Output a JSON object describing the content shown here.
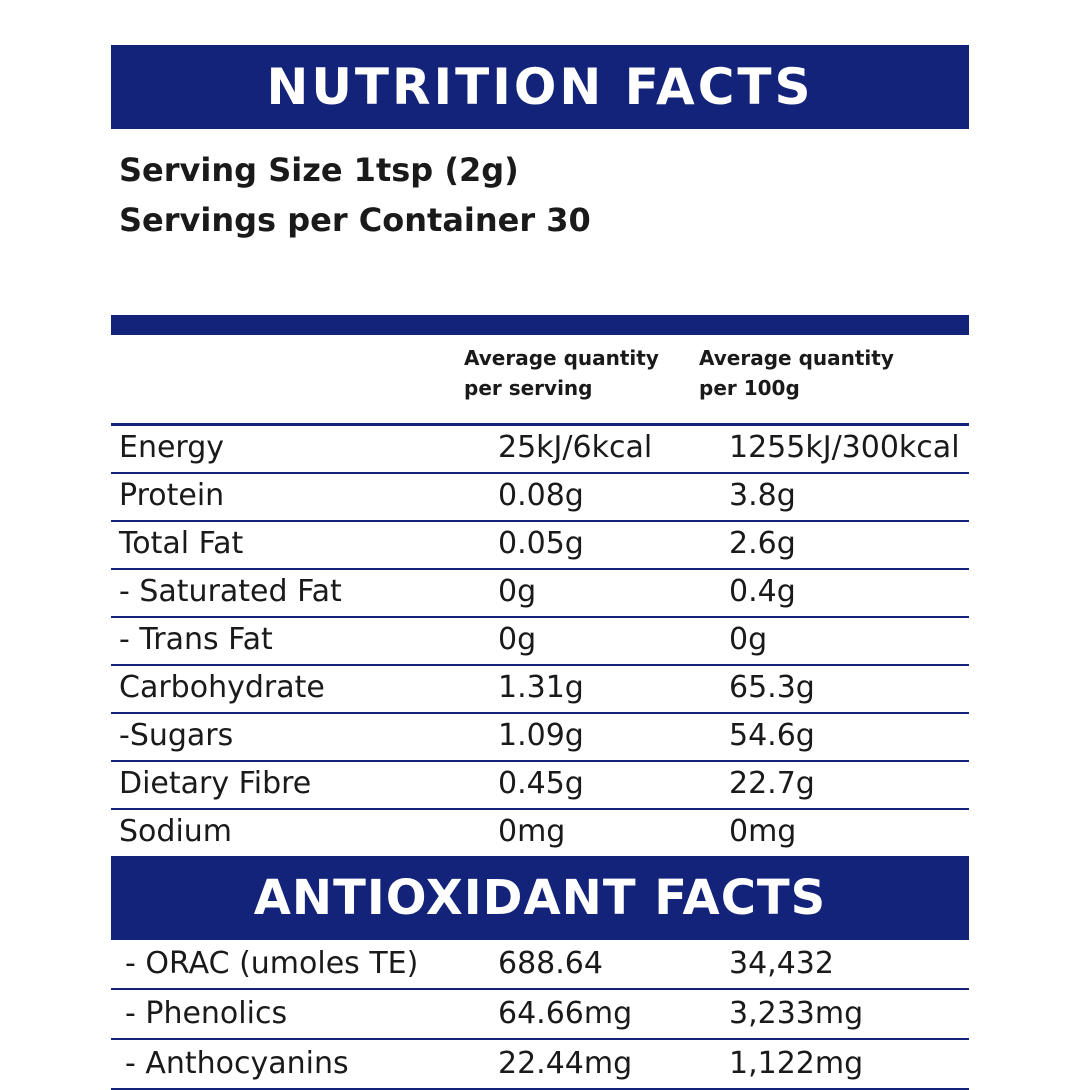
{
  "colors": {
    "navy": "#13237a"
  },
  "title": "NUTRITION FACTS",
  "serving_size": "Serving Size 1tsp (2g)",
  "servings_per_container": "Servings per Container 30",
  "columns": {
    "per_serving": [
      "Average quantity",
      "per serving"
    ],
    "per_100g": [
      "Average quantity",
      "per 100g"
    ]
  },
  "nutrients": [
    {
      "label": "Energy",
      "per_serving": "25kJ/6kcal",
      "per_100g": "1255kJ/300kcal"
    },
    {
      "label": "Protein",
      "per_serving": "0.08g",
      "per_100g": "3.8g"
    },
    {
      "label": "Total Fat",
      "per_serving": "0.05g",
      "per_100g": "2.6g"
    },
    {
      "label": " - Saturated Fat",
      "per_serving": "0g",
      "per_100g": "0.4g"
    },
    {
      "label": " - Trans Fat",
      "per_serving": "0g",
      "per_100g": "0g"
    },
    {
      "label": "Carbohydrate",
      "per_serving": "1.31g",
      "per_100g": "65.3g"
    },
    {
      "label": " -Sugars",
      "per_serving": "1.09g",
      "per_100g": "54.6g"
    },
    {
      "label": "Dietary Fibre",
      "per_serving": "0.45g",
      "per_100g": "22.7g"
    },
    {
      "label": "Sodium",
      "per_serving": "0mg",
      "per_100g": "0mg"
    }
  ],
  "antioxidant_title": "ANTIOXIDANT FACTS",
  "antioxidants": [
    {
      "label": "- ORAC (umoles TE)",
      "per_serving": "688.64",
      "per_100g": "34,432"
    },
    {
      "label": "- Phenolics",
      "per_serving": "64.66mg",
      "per_100g": "3,233mg"
    },
    {
      "label": "- Anthocyanins",
      "per_serving": "22.44mg",
      "per_100g": "1,122mg"
    }
  ]
}
